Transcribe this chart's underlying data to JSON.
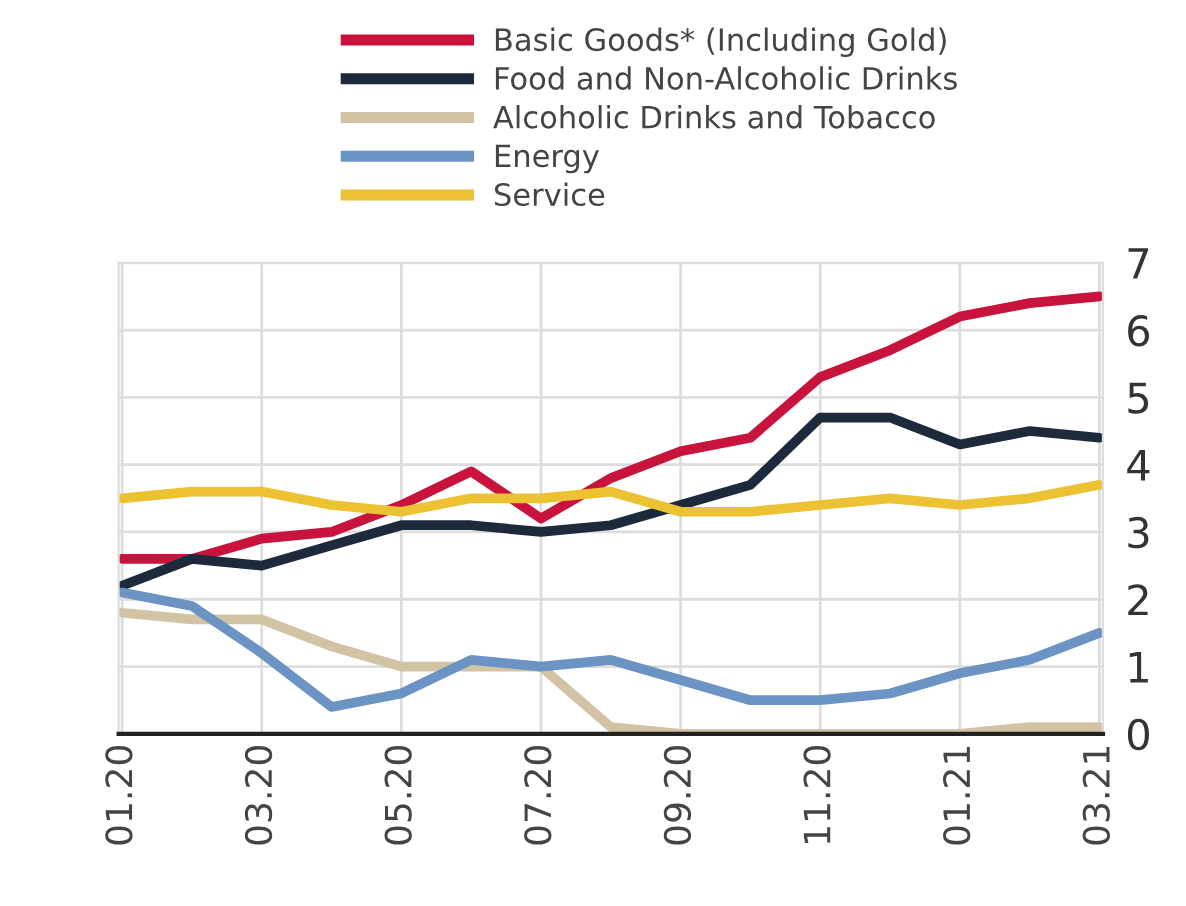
{
  "chart_data": {
    "type": "line",
    "categories": [
      "01.20",
      null,
      "03.20",
      null,
      "05.20",
      null,
      "07.20",
      null,
      "09.20",
      null,
      "11.20",
      null,
      "01.21",
      null,
      "03.21"
    ],
    "series": [
      {
        "name": "Basic Goods* (Including Gold)",
        "color": "#c8143c",
        "values": [
          2.6,
          2.6,
          2.9,
          3.0,
          3.4,
          3.9,
          3.2,
          3.8,
          4.2,
          4.4,
          5.3,
          5.7,
          6.2,
          6.4,
          6.5
        ]
      },
      {
        "name": "Food and Non-Alcoholic Drinks",
        "color": "#1c2a3c",
        "values": [
          2.2,
          2.6,
          2.5,
          2.8,
          3.1,
          3.1,
          3.0,
          3.1,
          3.4,
          3.7,
          4.7,
          4.7,
          4.3,
          4.5,
          4.4
        ]
      },
      {
        "name": "Alcoholic Drinks and Tobacco",
        "color": "#d2c3a5",
        "values": [
          1.8,
          1.7,
          1.7,
          1.3,
          1.0,
          1.0,
          1.0,
          0.1,
          0.0,
          0.0,
          0.0,
          0.0,
          0.0,
          0.1,
          0.1
        ]
      },
      {
        "name": "Energy",
        "color": "#6b93c3",
        "values": [
          2.1,
          1.9,
          1.2,
          0.4,
          0.6,
          1.1,
          1.0,
          1.1,
          0.8,
          0.5,
          0.5,
          0.6,
          0.9,
          1.1,
          1.5
        ]
      },
      {
        "name": "Service",
        "color": "#ecc232",
        "values": [
          3.5,
          3.6,
          3.6,
          3.4,
          3.3,
          3.5,
          3.5,
          3.6,
          3.3,
          3.3,
          3.4,
          3.5,
          3.4,
          3.5,
          3.7
        ]
      }
    ],
    "ylim": [
      0,
      7
    ],
    "yticks": [
      0,
      1,
      2,
      3,
      4,
      5,
      6,
      7
    ],
    "grid": true,
    "legend": "top",
    "marker": "none",
    "line_style": "solid"
  }
}
